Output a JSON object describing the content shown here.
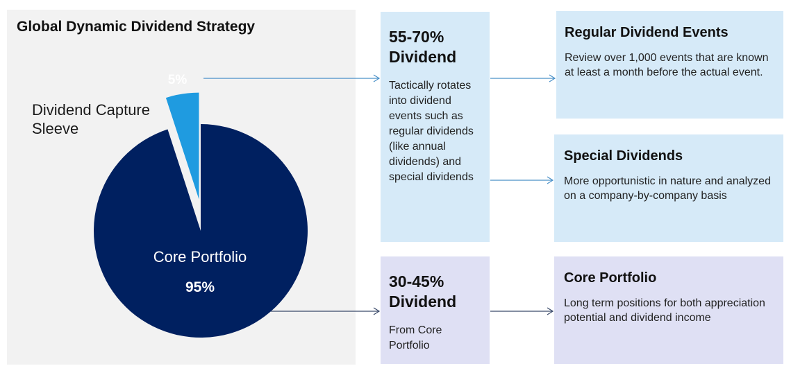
{
  "left_panel": {
    "title": "Global Dynamic Dividend Strategy",
    "sleeve_label": "Dividend Capture Sleeve",
    "sleeve_pct": "5%",
    "core_label": "Core Portfolio",
    "core_pct": "95%"
  },
  "chart_data": {
    "type": "pie",
    "title": "Global Dynamic Dividend Strategy",
    "slices": [
      {
        "label": "Dividend Capture Sleeve",
        "value": 5,
        "color": "#1f9be0",
        "exploded": true
      },
      {
        "label": "Core Portfolio",
        "value": 95,
        "color": "#002060",
        "exploded": false
      }
    ]
  },
  "boxes": {
    "sleeve_yield": {
      "heading": "55-70% Dividend",
      "body": "Tactically rotates into dividend events such as regular dividends (like annual dividends) and special dividends"
    },
    "core_yield": {
      "heading": "30-45% Dividend",
      "body": "From Core Portfolio"
    },
    "regular": {
      "heading": "Regular Dividend Events",
      "body": "Review over 1,000 events that are known at least a month before the actual event."
    },
    "special": {
      "heading": "Special Dividends",
      "body": "More opportunistic in nature and analyzed on a company-by-company basis"
    },
    "core": {
      "heading": "Core Portfolio",
      "body": "Long term positions for both appreciation potential and dividend income"
    }
  },
  "colors": {
    "sleeve": "#1f9be0",
    "core": "#002060",
    "arrow": "#4a90c8",
    "arrow_dark": "#3a4a6a"
  }
}
